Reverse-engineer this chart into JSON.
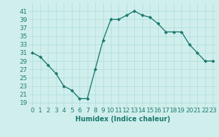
{
  "x": [
    0,
    1,
    2,
    3,
    4,
    5,
    6,
    7,
    8,
    9,
    10,
    11,
    12,
    13,
    14,
    15,
    16,
    17,
    18,
    19,
    20,
    21,
    22,
    23
  ],
  "y": [
    31,
    30,
    28,
    26,
    23,
    22,
    20,
    20,
    27,
    34,
    39,
    39,
    40,
    41,
    40,
    39.5,
    38,
    36,
    36,
    36,
    33,
    31,
    29,
    29
  ],
  "line_color": "#1a7a6e",
  "marker": "D",
  "marker_size": 2.2,
  "bg_color": "#d0eeec",
  "grid_color": "#aaddda",
  "xlabel": "Humidex (Indice chaleur)",
  "xlim": [
    -0.5,
    23.5
  ],
  "ylim": [
    18,
    43
  ],
  "yticks": [
    19,
    21,
    23,
    25,
    27,
    29,
    31,
    33,
    35,
    37,
    39,
    41
  ],
  "xticks": [
    0,
    1,
    2,
    3,
    4,
    5,
    6,
    7,
    8,
    9,
    10,
    11,
    12,
    13,
    14,
    15,
    16,
    17,
    18,
    19,
    20,
    21,
    22,
    23
  ],
  "xtick_labels": [
    "0",
    "1",
    "2",
    "3",
    "4",
    "5",
    "6",
    "7",
    "8",
    "9",
    "10",
    "11",
    "12",
    "13",
    "14",
    "15",
    "16",
    "17",
    "18",
    "19",
    "20",
    "21",
    "22",
    "23"
  ],
  "xlabel_fontsize": 7,
  "tick_fontsize": 6.5,
  "line_width": 1.0
}
